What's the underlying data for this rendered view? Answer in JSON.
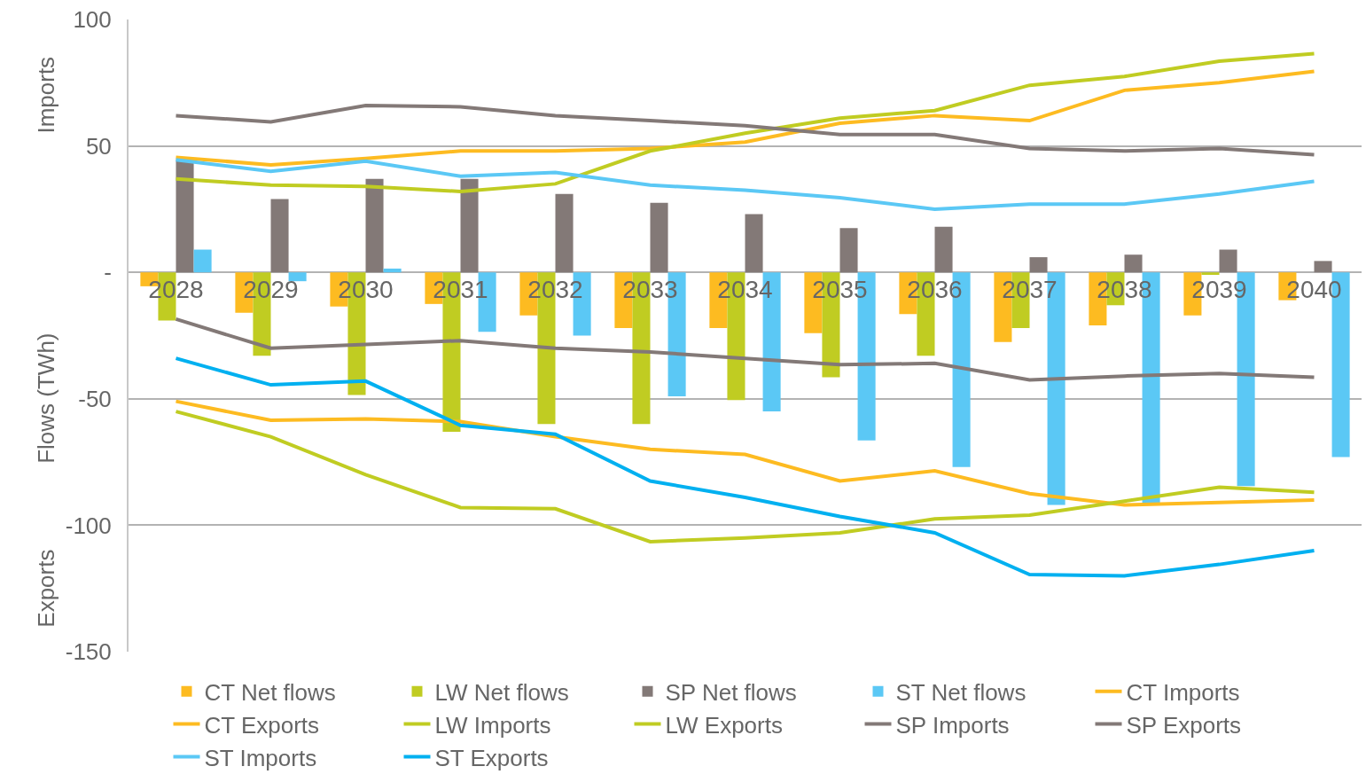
{
  "chart_data": {
    "type": "bar",
    "ylabel": "Flows (TWh)",
    "annotations": [
      "Imports",
      "Exports"
    ],
    "categories": [
      "2028",
      "2029",
      "2030",
      "2031",
      "2032",
      "2033",
      "2034",
      "2035",
      "2036",
      "2037",
      "2038",
      "2039",
      "2040"
    ],
    "ylim": [
      -150,
      100
    ],
    "yticks": [
      -150,
      -100,
      -50,
      {
        "value": 0,
        "label": "-"
      },
      50,
      100
    ],
    "grid": "y",
    "legend": "bottom",
    "series": [
      {
        "name": "CT Net flows",
        "color": "#fdbb21",
        "values": [
          -5.5,
          -16,
          -13.5,
          -12.5,
          -17,
          -22,
          -22,
          -24,
          -16.5,
          -27.5,
          -21,
          -17,
          -11
        ]
      },
      {
        "name": "LW Net flows",
        "color": "#c0cc22",
        "values": [
          -19,
          -33,
          -48.5,
          -63,
          -60,
          -60,
          -50.5,
          -41.5,
          -33,
          -22,
          -13,
          -1,
          0
        ]
      },
      {
        "name": "SP Net flows",
        "color": "#837977",
        "values": [
          44.5,
          29,
          37,
          37,
          31,
          27.5,
          23,
          17.5,
          18,
          6,
          7,
          9,
          4.5
        ]
      },
      {
        "name": "ST Net flows",
        "color": "#5bc8f5",
        "values": [
          9,
          -3.5,
          1.5,
          -23.5,
          -25,
          -49,
          -55,
          -66.5,
          -77,
          -92,
          -91.5,
          -84.5,
          -73
        ]
      },
      {
        "name": "CT Imports",
        "type": "line",
        "color": "#fdbb21",
        "values": [
          45.5,
          42.5,
          45,
          48,
          48,
          49,
          51.5,
          59,
          62,
          60,
          72,
          75,
          79.5
        ]
      },
      {
        "name": "CT Exports",
        "type": "line",
        "color": "#fdbb21",
        "values": [
          -51,
          -58.5,
          -58,
          -59,
          -65,
          -70,
          -72,
          -82.5,
          -78.5,
          -87.5,
          -92,
          -91,
          -90
        ]
      },
      {
        "name": "LW Imports",
        "type": "line",
        "color": "#c0cc22",
        "values": [
          37,
          34.5,
          34,
          32,
          35,
          48,
          55,
          61,
          64,
          74,
          77.5,
          83.5,
          86.5
        ]
      },
      {
        "name": "LW Exports",
        "type": "line",
        "color": "#c0cc22",
        "values": [
          -55,
          -65,
          -80,
          -93,
          -93.5,
          -106.5,
          -105,
          -103,
          -97.5,
          -96,
          -90.5,
          -85,
          -87
        ]
      },
      {
        "name": "SP Imports",
        "type": "line",
        "color": "#837977",
        "values": [
          62,
          59.5,
          66,
          65.5,
          62,
          60,
          58,
          54.5,
          54.5,
          49,
          48,
          49,
          46.5
        ]
      },
      {
        "name": "SP Exports",
        "type": "line",
        "color": "#837977",
        "values": [
          -18.5,
          -30,
          -28.5,
          -27,
          -30,
          -31.5,
          -34,
          -36.5,
          -36,
          -42.5,
          -41,
          -40,
          -41.5
        ]
      },
      {
        "name": "ST Imports",
        "type": "line",
        "color": "#5bc8f5",
        "values": [
          44.5,
          40,
          44,
          38,
          39.5,
          34.5,
          32.5,
          29.5,
          25,
          27,
          27,
          31,
          36
        ]
      },
      {
        "name": "ST Exports",
        "type": "line",
        "color": "#00b0f0",
        "values": [
          -34,
          -44.5,
          -43,
          -60.5,
          -64,
          -82.5,
          -89,
          -96.5,
          -103,
          -119.5,
          -120,
          -115.5,
          -110
        ]
      }
    ]
  }
}
